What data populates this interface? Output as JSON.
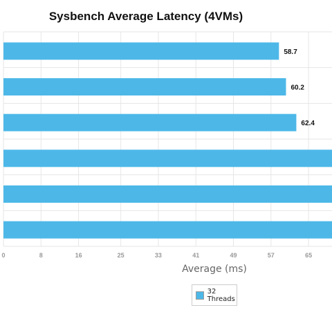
{
  "chart_data": {
    "type": "bar",
    "orientation": "horizontal",
    "title": "Sysbench Average Latency (4VMs)",
    "xlabel": "Average (ms)",
    "ylabel": "",
    "x_ticks": [
      "0",
      "8",
      "16",
      "25",
      "33",
      "41",
      "49",
      "57",
      "65"
    ],
    "xlim": [
      0,
      70
    ],
    "grid": true,
    "legend_position": "bottom",
    "categories": [
      "",
      "",
      "",
      "",
      "",
      ""
    ],
    "series": [
      {
        "name": "32 Threads",
        "color": "#4db8e8",
        "values": [
          58.7,
          60.2,
          62.4,
          70,
          70,
          70
        ],
        "data_labels": [
          "58.7",
          "60.2",
          "62.4",
          "",
          "",
          ""
        ]
      }
    ]
  },
  "legend": {
    "label_line1": "32",
    "label_line2": "Threads"
  }
}
